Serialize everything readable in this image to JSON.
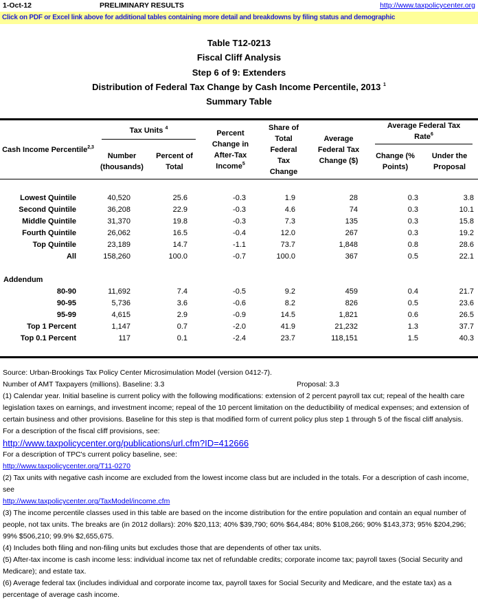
{
  "header": {
    "date": "1-Oct-12",
    "status": "PRELIMINARY RESULTS",
    "url": "http://www.taxpolicycenter.org",
    "banner": "Click on PDF or Excel link above for additional tables containing more detail and breakdowns by filing status and demographic"
  },
  "titles": {
    "lines": [
      "Table T12-0213",
      "Fiscal Cliff Analysis",
      "Step 6 of 9: Extenders",
      "Distribution of Federal Tax Change by Cash Income Percentile, 2013",
      "Summary Table"
    ],
    "footnote": "1"
  },
  "table": {
    "columns": {
      "percentile": "Cash Income Percentile",
      "percentile_note": "2,3",
      "tax_units": "Tax Units",
      "tax_units_note": "4",
      "number": "Number (thousands)",
      "percent_total": "Percent of Total",
      "after_tax": "Percent Change in After-Tax Income",
      "after_tax_note": "5",
      "share": "Share of Total Federal Tax Change",
      "avg_change": "Average Federal Tax Change ($)",
      "rate": "Average Federal Tax Rate",
      "rate_note": "6",
      "rate_change": "Change (% Points)",
      "under": "Under the Proposal"
    },
    "rows": [
      [
        "Lowest Quintile",
        "40,520",
        "25.6",
        "-0.3",
        "1.9",
        "28",
        "0.3",
        "3.8"
      ],
      [
        "Second Quintile",
        "36,208",
        "22.9",
        "-0.3",
        "4.6",
        "74",
        "0.3",
        "10.1"
      ],
      [
        "Middle Quintile",
        "31,370",
        "19.8",
        "-0.3",
        "7.3",
        "135",
        "0.3",
        "15.8"
      ],
      [
        "Fourth Quintile",
        "26,062",
        "16.5",
        "-0.4",
        "12.0",
        "267",
        "0.3",
        "19.2"
      ],
      [
        "Top Quintile",
        "23,189",
        "14.7",
        "-1.1",
        "73.7",
        "1,848",
        "0.8",
        "28.6"
      ],
      [
        "All",
        "158,260",
        "100.0",
        "-0.7",
        "100.0",
        "367",
        "0.5",
        "22.1"
      ]
    ],
    "addendum_label": "Addendum",
    "addendum_rows": [
      [
        "80-90",
        "11,692",
        "7.4",
        "-0.5",
        "9.2",
        "459",
        "0.4",
        "21.7"
      ],
      [
        "90-95",
        "5,736",
        "3.6",
        "-0.6",
        "8.2",
        "826",
        "0.5",
        "23.6"
      ],
      [
        "95-99",
        "4,615",
        "2.9",
        "-0.9",
        "14.5",
        "1,821",
        "0.6",
        "26.5"
      ],
      [
        "Top 1 Percent",
        "1,147",
        "0.7",
        "-2.0",
        "41.9",
        "21,232",
        "1.3",
        "37.7"
      ],
      [
        "Top 0.1 Percent",
        "117",
        "0.1",
        "-2.4",
        "23.7",
        "118,151",
        "1.5",
        "40.3"
      ]
    ]
  },
  "notes": {
    "source": "Source: Urban-Brookings Tax Policy Center Microsimulation Model (version 0412-7).",
    "amt_baseline": "Number of AMT Taxpayers (millions).  Baseline: 3.3",
    "amt_proposal": "Proposal: 3.3",
    "items": [
      {
        "text": "(1) Calendar year. Initial baseline is current policy with the following modifications: extension of 2 percent payroll tax cut; repeal of the health care legislation taxes on earnings, and investment income; repeal of the 10 percent limitation on the deductibility of medical expenses; and extension of certain business and other provisions. Baseline for this step is that modified form of current policy plus step 1  through 5 of the fiscal cliff analysis. For a description of the fiscal cliff provisions, see:"
      },
      {
        "link": "http://www.taxpolicycenter.org/publications/url.cfm?ID=412666"
      },
      {
        "text": "For a description of TPC's current policy baseline, see:"
      },
      {
        "link": "http://www.taxpolicycenter.org/T11-0270"
      },
      {
        "text": "(2) Tax units with negative cash income are excluded from the lowest income class but are included in the totals. For a description of cash income, see"
      },
      {
        "link": "http://www.taxpolicycenter.org/TaxModel/income.cfm"
      },
      {
        "text": "(3) The income percentile classes used in this table are based on the income distribution for the entire population and contain an equal number of people, not tax units. The breaks are (in 2012 dollars): 20% $20,113; 40% $39,790; 60% $64,484; 80% $108,266; 90% $143,373; 95% $204,296; 99% $506,210; 99.9% $2,655,675."
      },
      {
        "text": "(4) Includes both filing and non-filing units but excludes those that are dependents of other tax units."
      },
      {
        "text": "(5) After-tax income is cash income less: individual income tax net of refundable credits; corporate income tax; payroll taxes (Social Security and Medicare); and estate tax."
      },
      {
        "text": "(6) Average federal tax (includes individual and corporate income tax, payroll taxes for Social Security and Medicare, and the estate tax) as a percentage of average cash income."
      }
    ]
  }
}
